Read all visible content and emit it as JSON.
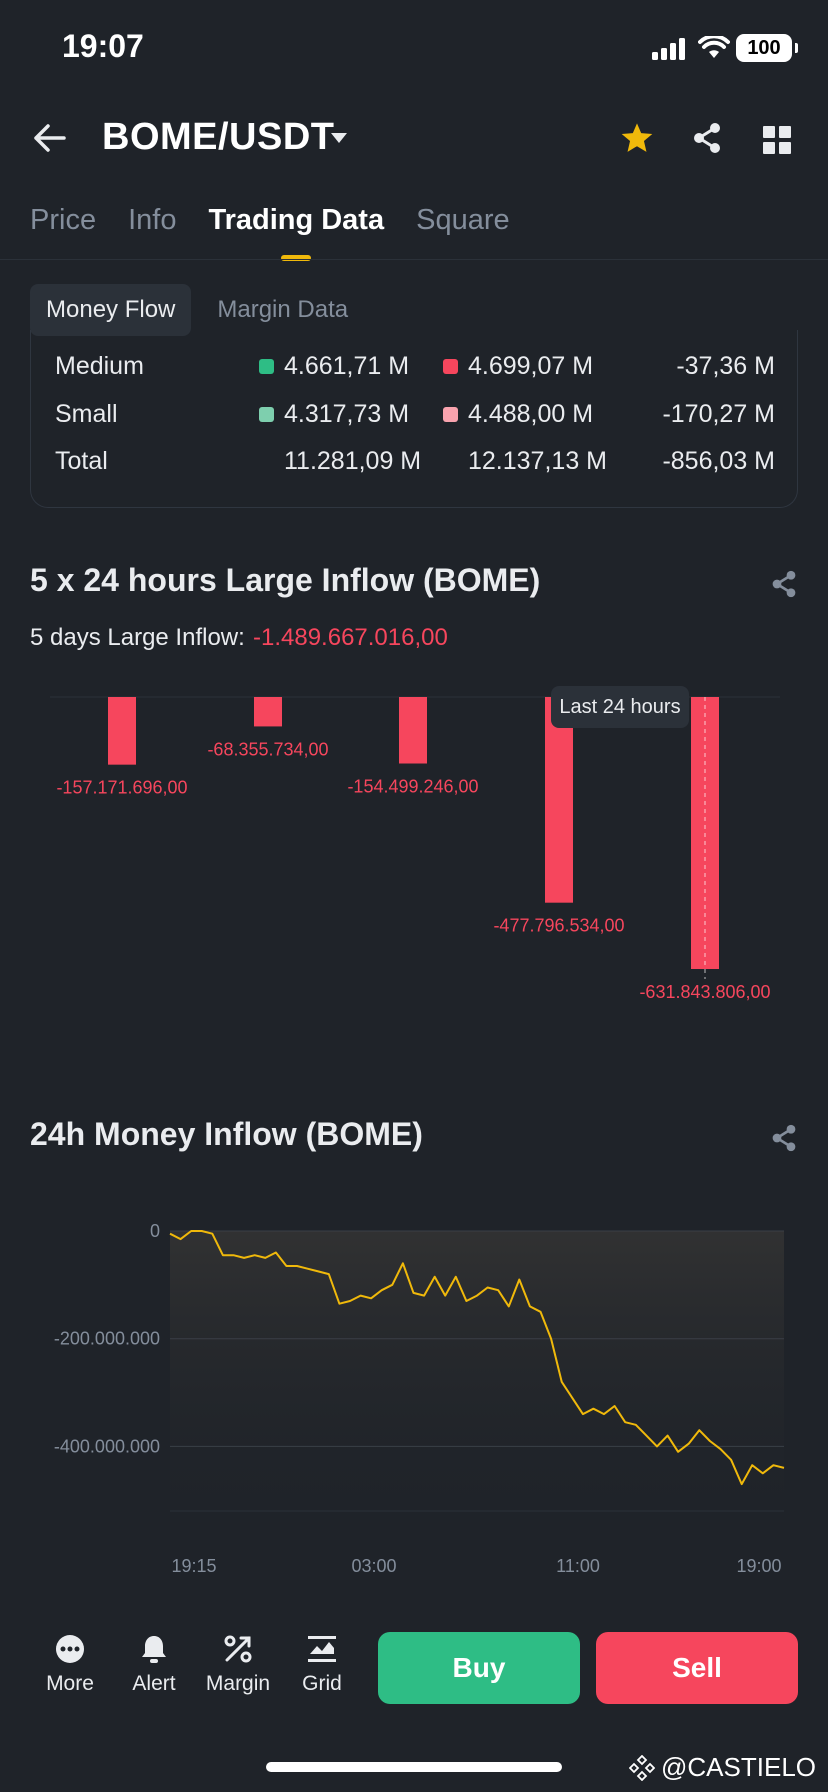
{
  "status": {
    "time": "19:07",
    "battery": "100"
  },
  "header": {
    "pair": "BOME/USDT"
  },
  "tabs": [
    {
      "label": "Price",
      "active": false
    },
    {
      "label": "Info",
      "active": false
    },
    {
      "label": "Trading Data",
      "active": true
    },
    {
      "label": "Square",
      "active": false
    }
  ],
  "subtabs": [
    {
      "label": "Money Flow",
      "active": true
    },
    {
      "label": "Margin Data",
      "active": false
    }
  ],
  "money_flow": {
    "rows": [
      {
        "label": "Medium",
        "inflow": "4.661,71 M",
        "outflow": "4.699,07 M",
        "net": "-37,36 M",
        "inflow_color": "#2ebd85",
        "outflow_color": "#f6465d"
      },
      {
        "label": "Small",
        "inflow": "4.317,73 M",
        "outflow": "4.488,00 M",
        "net": "-170,27 M",
        "inflow_color": "#7ecfae",
        "outflow_color": "#f9a3ae"
      },
      {
        "label": "Total",
        "inflow": "11.281,09 M",
        "outflow": "12.137,13 M",
        "net": "-856,03 M"
      }
    ]
  },
  "large_inflow": {
    "title": "5 x 24 hours Large Inflow (BOME)",
    "days_label": "5 days Large Inflow:",
    "days_value": "-1.489.667.016,00",
    "tooltip": "Last 24 hours"
  },
  "money_inflow": {
    "title": "24h Money Inflow (BOME)"
  },
  "bottom": {
    "nav": [
      {
        "label": "More",
        "icon": "more-icon"
      },
      {
        "label": "Alert",
        "icon": "bell-icon"
      },
      {
        "label": "Margin",
        "icon": "margin-icon"
      },
      {
        "label": "Grid",
        "icon": "grid-icon"
      }
    ],
    "buy_label": "Buy",
    "sell_label": "Sell"
  },
  "watermark": "@CASTIELO",
  "colors": {
    "accent": "#f0b90b",
    "up": "#2ebd85",
    "down": "#f6465d",
    "bg": "#1f2329"
  },
  "chart_data": [
    {
      "type": "bar",
      "title": "5 x 24 hours Large Inflow (BOME)",
      "values": [
        -157171696,
        -68355734,
        -154499246,
        -477796534,
        -631843806
      ],
      "labels": [
        "-157.171.696,00",
        "-68.355.734,00",
        "-154.499.246,00",
        "-477.796.534,00",
        "-631.843.806,00"
      ],
      "color": "#f6465d",
      "ylim": [
        -631843806,
        0
      ]
    },
    {
      "type": "line",
      "title": "24h Money Inflow (BOME)",
      "y_ticks": [
        0,
        -200000000,
        -400000000
      ],
      "y_tick_labels": [
        "0",
        "-200.000.000",
        "-400.000.000"
      ],
      "x_tick_labels": [
        "19:15",
        "03:00",
        "11:00",
        "19:00"
      ],
      "ylim": [
        -520000000,
        0
      ],
      "color": "#f0b90b",
      "series": [
        {
          "values": [
            -5000000,
            -15000000,
            0,
            0,
            -5000000,
            -45000000,
            -45000000,
            -50000000,
            -45000000,
            -50000000,
            -40000000,
            -65000000,
            -65000000,
            -70000000,
            -75000000,
            -80000000,
            -135000000,
            -130000000,
            -120000000,
            -125000000,
            -110000000,
            -100000000,
            -60000000,
            -115000000,
            -120000000,
            -85000000,
            -120000000,
            -85000000,
            -130000000,
            -120000000,
            -105000000,
            -110000000,
            -140000000,
            -90000000,
            -140000000,
            -150000000,
            -200000000,
            -280000000,
            -310000000,
            -340000000,
            -330000000,
            -340000000,
            -325000000,
            -355000000,
            -360000000,
            -380000000,
            -400000000,
            -380000000,
            -410000000,
            -395000000,
            -370000000,
            -390000000,
            -405000000,
            -425000000,
            -470000000,
            -435000000,
            -450000000,
            -435000000,
            -440000000
          ]
        }
      ]
    }
  ]
}
